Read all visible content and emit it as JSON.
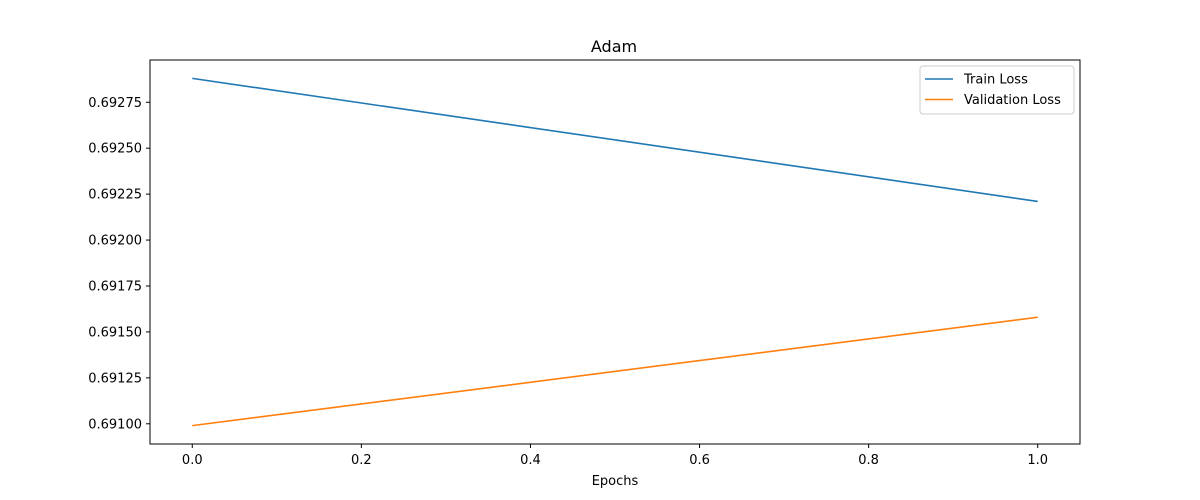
{
  "chart_data": {
    "type": "line",
    "title": "Adam",
    "xlabel": "Epochs",
    "ylabel": "",
    "x": [
      0.0,
      1.0
    ],
    "xlim": [
      -0.05,
      1.05
    ],
    "ylim": [
      0.69089,
      0.69298
    ],
    "xticks": [
      0.0,
      0.2,
      0.4,
      0.6,
      0.8,
      1.0
    ],
    "xtick_labels": [
      "0.0",
      "0.2",
      "0.4",
      "0.6",
      "0.8",
      "1.0"
    ],
    "yticks": [
      0.691,
      0.69125,
      0.6915,
      0.69175,
      0.692,
      0.69225,
      0.6925,
      0.69275
    ],
    "ytick_labels": [
      "0.69100",
      "0.69125",
      "0.69150",
      "0.69175",
      "0.69200",
      "0.69225",
      "0.69250",
      "0.69275"
    ],
    "grid": false,
    "legend_position": "top-right",
    "series": [
      {
        "name": "Train Loss",
        "color": "#1f77b4",
        "values": [
          0.69288,
          0.69221
        ]
      },
      {
        "name": "Validation Loss",
        "color": "#ff7f0e",
        "values": [
          0.69099,
          0.69158
        ]
      }
    ]
  }
}
